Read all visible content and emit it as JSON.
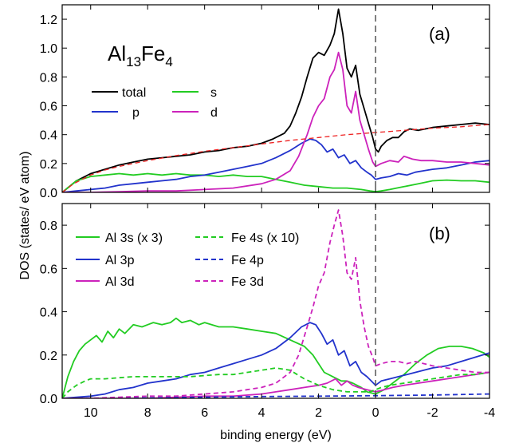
{
  "chart_data": [
    {
      "type": "line",
      "panel_label": "(a)",
      "annotation": {
        "base1": "Al",
        "sub1": "13",
        "base2": "Fe",
        "sub2": "4"
      },
      "xlabel": "binding energy (eV)",
      "ylabel": "DOS (states/ eV atom)",
      "xlim": [
        11,
        -4
      ],
      "ylim": [
        0,
        1.3
      ],
      "xticks": [
        10,
        8,
        6,
        4,
        2,
        0,
        -2,
        -4
      ],
      "yticks": [
        0.0,
        0.2,
        0.4,
        0.6,
        0.8,
        1.0,
        1.2
      ],
      "ytick_labels": [
        "0.0",
        "0.2",
        "0.4",
        "0.6",
        "0.8",
        "1.0",
        "1.2"
      ],
      "fermi_level": 0,
      "legend_placement": "upper-left",
      "series": [
        {
          "name": "total",
          "color": "#000000",
          "dash": "solid",
          "x": [
            11,
            10.5,
            10,
            9.5,
            9,
            8.5,
            8,
            7.5,
            7,
            6.5,
            6,
            5.5,
            5,
            4.5,
            4,
            3.6,
            3.2,
            3.0,
            2.8,
            2.6,
            2.4,
            2.2,
            2.0,
            1.8,
            1.6,
            1.45,
            1.3,
            1.15,
            1.0,
            0.85,
            0.7,
            0.55,
            0.4,
            0.25,
            0.1,
            0.0,
            -0.1,
            -0.2,
            -0.4,
            -0.6,
            -0.8,
            -1.0,
            -1.2,
            -1.5,
            -2.0,
            -2.5,
            -3.0,
            -3.5,
            -4.0
          ],
          "y": [
            0.0,
            0.08,
            0.13,
            0.16,
            0.19,
            0.21,
            0.23,
            0.24,
            0.25,
            0.26,
            0.28,
            0.29,
            0.31,
            0.32,
            0.34,
            0.37,
            0.41,
            0.46,
            0.55,
            0.66,
            0.8,
            0.93,
            0.97,
            0.95,
            1.02,
            1.1,
            1.27,
            1.1,
            0.86,
            0.8,
            0.88,
            0.68,
            0.58,
            0.48,
            0.38,
            0.3,
            0.28,
            0.32,
            0.36,
            0.38,
            0.38,
            0.42,
            0.44,
            0.43,
            0.45,
            0.46,
            0.47,
            0.48,
            0.47
          ]
        },
        {
          "name": "s",
          "color": "#22cc22",
          "dash": "solid",
          "x": [
            11,
            10.5,
            10,
            9.5,
            9,
            8.5,
            8,
            7.5,
            7,
            6.5,
            6,
            5.5,
            5,
            4.5,
            4,
            3.5,
            3.0,
            2.5,
            2.0,
            1.5,
            1.0,
            0.5,
            0.2,
            0.0,
            -0.2,
            -0.5,
            -1.0,
            -1.5,
            -2.0,
            -2.5,
            -3.0,
            -3.5,
            -4.0
          ],
          "y": [
            0.0,
            0.08,
            0.11,
            0.12,
            0.13,
            0.12,
            0.13,
            0.12,
            0.13,
            0.12,
            0.12,
            0.11,
            0.12,
            0.11,
            0.11,
            0.09,
            0.07,
            0.05,
            0.04,
            0.03,
            0.03,
            0.02,
            0.01,
            0.005,
            0.01,
            0.02,
            0.04,
            0.06,
            0.08,
            0.085,
            0.08,
            0.08,
            0.07
          ]
        },
        {
          "name": "p",
          "color": "#2233cc",
          "dash": "solid",
          "x": [
            11,
            10.5,
            10,
            9.5,
            9,
            8.5,
            8,
            7.5,
            7,
            6.5,
            6,
            5.5,
            5,
            4.5,
            4,
            3.5,
            3.0,
            2.6,
            2.3,
            2.1,
            1.9,
            1.7,
            1.5,
            1.3,
            1.1,
            0.9,
            0.7,
            0.5,
            0.3,
            0.15,
            0.0,
            -0.2,
            -0.5,
            -0.8,
            -1.1,
            -1.4,
            -1.7,
            -2.0,
            -2.5,
            -3.0,
            -3.5,
            -4.0
          ],
          "y": [
            0.0,
            0.01,
            0.02,
            0.03,
            0.05,
            0.06,
            0.07,
            0.08,
            0.09,
            0.11,
            0.12,
            0.14,
            0.16,
            0.18,
            0.2,
            0.24,
            0.29,
            0.34,
            0.37,
            0.36,
            0.33,
            0.28,
            0.3,
            0.24,
            0.26,
            0.2,
            0.22,
            0.17,
            0.14,
            0.12,
            0.09,
            0.1,
            0.11,
            0.13,
            0.12,
            0.14,
            0.15,
            0.16,
            0.17,
            0.19,
            0.21,
            0.22
          ]
        },
        {
          "name": "d",
          "color": "#cc22bb",
          "dash": "solid",
          "x": [
            11,
            10,
            9,
            8,
            7,
            6,
            5,
            4,
            3.5,
            3.0,
            2.7,
            2.4,
            2.2,
            2.0,
            1.8,
            1.6,
            1.45,
            1.3,
            1.15,
            1.0,
            0.85,
            0.7,
            0.55,
            0.4,
            0.25,
            0.1,
            0.0,
            -0.2,
            -0.5,
            -0.8,
            -1.0,
            -1.3,
            -1.6,
            -2.0,
            -2.5,
            -3.0,
            -3.5,
            -4.0
          ],
          "y": [
            0.0,
            0.0,
            0.005,
            0.01,
            0.01,
            0.02,
            0.03,
            0.06,
            0.09,
            0.15,
            0.25,
            0.4,
            0.52,
            0.6,
            0.65,
            0.8,
            0.85,
            0.97,
            0.85,
            0.6,
            0.55,
            0.7,
            0.5,
            0.4,
            0.3,
            0.21,
            0.18,
            0.2,
            0.22,
            0.21,
            0.25,
            0.23,
            0.22,
            0.22,
            0.21,
            0.21,
            0.2,
            0.19
          ]
        },
        {
          "name": "",
          "color": "#ee2222",
          "dash": "dashed",
          "x": [
            11,
            10.8,
            10.6,
            10.3,
            10,
            9.5,
            9,
            8.5,
            8,
            7,
            6,
            5,
            4,
            3,
            2,
            1,
            0,
            -1,
            -2,
            -3,
            -4
          ],
          "y": [
            0.0,
            0.03,
            0.06,
            0.09,
            0.12,
            0.155,
            0.18,
            0.2,
            0.22,
            0.255,
            0.285,
            0.31,
            0.335,
            0.36,
            0.38,
            0.4,
            0.415,
            0.43,
            0.445,
            0.455,
            0.47
          ]
        }
      ]
    },
    {
      "type": "line",
      "panel_label": "(b)",
      "xlabel": "binding energy (eV)",
      "ylabel": "DOS (states/ eV atom)",
      "xlim": [
        11,
        -4
      ],
      "ylim": [
        0,
        0.9
      ],
      "xticks": [
        10,
        8,
        6,
        4,
        2,
        0,
        -2,
        -4
      ],
      "yticks": [
        0.0,
        0.2,
        0.4,
        0.6,
        0.8
      ],
      "ytick_labels": [
        "0.0",
        "0.2",
        "0.4",
        "0.6",
        "0.8"
      ],
      "fermi_level": 0,
      "legend_placement": "top",
      "series": [
        {
          "name": "Al 3s (x 3)",
          "color": "#22cc22",
          "dash": "solid",
          "x": [
            11,
            10.8,
            10.6,
            10.4,
            10.2,
            10.0,
            9.8,
            9.6,
            9.4,
            9.2,
            9.0,
            8.8,
            8.5,
            8.2,
            8.0,
            7.8,
            7.5,
            7.2,
            7.0,
            6.8,
            6.5,
            6.2,
            6.0,
            5.5,
            5.0,
            4.5,
            4.0,
            3.5,
            3.0,
            2.5,
            2.2,
            2.0,
            1.8,
            1.5,
            1.2,
            1.0,
            0.8,
            0.5,
            0.3,
            0.0,
            -0.3,
            -0.6,
            -1.0,
            -1.4,
            -1.8,
            -2.2,
            -2.6,
            -3.0,
            -3.4,
            -3.8,
            -4.0
          ],
          "y": [
            0.0,
            0.1,
            0.17,
            0.22,
            0.25,
            0.27,
            0.29,
            0.26,
            0.31,
            0.28,
            0.32,
            0.3,
            0.34,
            0.33,
            0.34,
            0.35,
            0.34,
            0.35,
            0.37,
            0.35,
            0.36,
            0.34,
            0.35,
            0.33,
            0.33,
            0.32,
            0.31,
            0.3,
            0.27,
            0.24,
            0.2,
            0.16,
            0.12,
            0.1,
            0.08,
            0.08,
            0.07,
            0.05,
            0.03,
            0.02,
            0.04,
            0.07,
            0.11,
            0.16,
            0.2,
            0.23,
            0.24,
            0.24,
            0.23,
            0.21,
            0.19
          ]
        },
        {
          "name": "Al 3p",
          "color": "#2233cc",
          "dash": "solid",
          "x": [
            11,
            10.5,
            10,
            9.5,
            9,
            8.5,
            8,
            7.5,
            7,
            6.5,
            6,
            5.5,
            5,
            4.5,
            4,
            3.5,
            3.0,
            2.6,
            2.3,
            2.1,
            1.9,
            1.7,
            1.5,
            1.3,
            1.1,
            0.9,
            0.7,
            0.5,
            0.3,
            0.15,
            0.0,
            -0.2,
            -0.5,
            -0.8,
            -1.1,
            -1.4,
            -1.7,
            -2.0,
            -2.5,
            -3.0,
            -3.5,
            -4.0
          ],
          "y": [
            0.0,
            0.005,
            0.01,
            0.02,
            0.04,
            0.05,
            0.07,
            0.08,
            0.09,
            0.11,
            0.12,
            0.14,
            0.16,
            0.18,
            0.2,
            0.23,
            0.28,
            0.33,
            0.35,
            0.34,
            0.3,
            0.25,
            0.27,
            0.2,
            0.22,
            0.15,
            0.17,
            0.12,
            0.1,
            0.08,
            0.06,
            0.08,
            0.09,
            0.1,
            0.11,
            0.12,
            0.13,
            0.14,
            0.15,
            0.17,
            0.19,
            0.21
          ]
        },
        {
          "name": "Al 3d",
          "color": "#cc22bb",
          "dash": "solid",
          "x": [
            11,
            10,
            9,
            8,
            7,
            6,
            5,
            4,
            3.5,
            3.0,
            2.5,
            2.0,
            1.7,
            1.4,
            1.2,
            1.0,
            0.8,
            0.6,
            0.3,
            0.0,
            -0.3,
            -0.6,
            -1.0,
            -1.5,
            -2.0,
            -2.5,
            -3.0,
            -3.5,
            -4.0
          ],
          "y": [
            0.0,
            0.0,
            0.0,
            0.0,
            0.005,
            0.01,
            0.01,
            0.02,
            0.03,
            0.04,
            0.05,
            0.06,
            0.07,
            0.09,
            0.06,
            0.08,
            0.06,
            0.05,
            0.04,
            0.03,
            0.04,
            0.05,
            0.06,
            0.07,
            0.08,
            0.09,
            0.1,
            0.11,
            0.12
          ]
        },
        {
          "name": "Fe 4s (x 10)",
          "color": "#22cc22",
          "dash": "dashed",
          "x": [
            11,
            10.8,
            10.5,
            10.2,
            10.0,
            9.5,
            9.0,
            8.5,
            8.0,
            7.5,
            7.0,
            6.5,
            6.0,
            5.5,
            5.0,
            4.5,
            4.0,
            3.5,
            3.0,
            2.5,
            2.0,
            1.5,
            1.0,
            0.5,
            0.2,
            0.0,
            -0.2,
            -0.5,
            -1.0,
            -1.5,
            -2.0,
            -2.5,
            -3.0,
            -3.5,
            -4.0
          ],
          "y": [
            0.0,
            0.03,
            0.06,
            0.08,
            0.09,
            0.09,
            0.095,
            0.1,
            0.1,
            0.1,
            0.1,
            0.1,
            0.105,
            0.11,
            0.11,
            0.12,
            0.13,
            0.14,
            0.13,
            0.09,
            0.06,
            0.04,
            0.03,
            0.03,
            0.03,
            0.04,
            0.05,
            0.06,
            0.07,
            0.08,
            0.09,
            0.1,
            0.11,
            0.11,
            0.12
          ]
        },
        {
          "name": "Fe 4p",
          "color": "#2233cc",
          "dash": "dashed",
          "x": [
            11,
            10,
            8,
            6,
            4,
            2,
            0,
            -2,
            -4
          ],
          "y": [
            0.0,
            0.0,
            0.002,
            0.005,
            0.008,
            0.01,
            0.012,
            0.015,
            0.02
          ]
        },
        {
          "name": "Fe 3d",
          "color": "#cc22bb",
          "dash": "dashed",
          "x": [
            11,
            10,
            9,
            8,
            7,
            6,
            5,
            4,
            3.5,
            3.0,
            2.7,
            2.4,
            2.2,
            2.0,
            1.8,
            1.6,
            1.45,
            1.3,
            1.15,
            1.0,
            0.85,
            0.7,
            0.55,
            0.4,
            0.25,
            0.1,
            0.0,
            -0.2,
            -0.5,
            -0.8,
            -1.1,
            -1.4,
            -1.7,
            -2.0,
            -2.5,
            -3.0,
            -3.5,
            -4.0
          ],
          "y": [
            0.0,
            0.0,
            0.005,
            0.01,
            0.01,
            0.02,
            0.03,
            0.05,
            0.07,
            0.12,
            0.2,
            0.33,
            0.42,
            0.52,
            0.58,
            0.72,
            0.8,
            0.87,
            0.75,
            0.58,
            0.55,
            0.65,
            0.45,
            0.33,
            0.24,
            0.19,
            0.15,
            0.16,
            0.17,
            0.17,
            0.16,
            0.17,
            0.16,
            0.15,
            0.14,
            0.13,
            0.12,
            0.12
          ]
        }
      ]
    }
  ]
}
